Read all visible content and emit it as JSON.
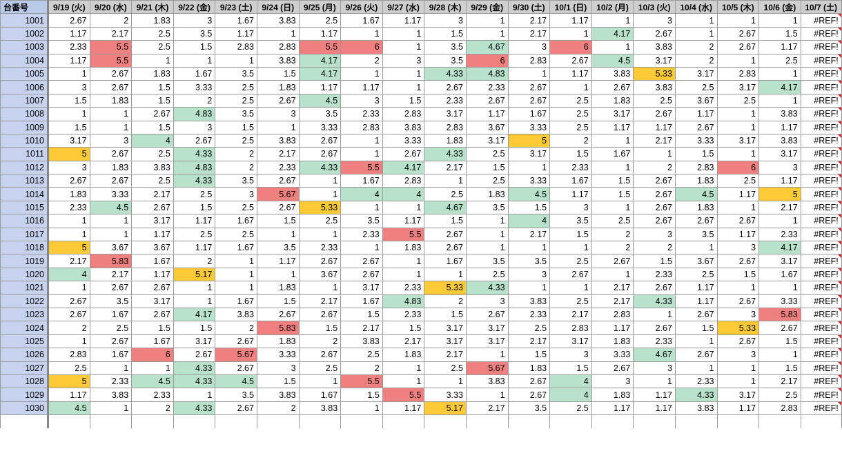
{
  "colors": {
    "red": "#f08080",
    "green": "#b9e2cc",
    "yellow": "#fbca35",
    "row_header": "#c7d3ee",
    "col_header": "#cfcfcf"
  },
  "header": {
    "corner": "台番号",
    "dates": [
      "9/19 (火)",
      "9/20 (水)",
      "9/21 (木)",
      "9/22 (金)",
      "9/23 (土)",
      "9/24 (日)",
      "9/25 (月)",
      "9/26 (火)",
      "9/27 (水)",
      "9/28 (木)",
      "9/29 (金)",
      "9/30 (土)",
      "10/1 (日)",
      "10/2 (月)",
      "10/3 (火)",
      "10/4 (水)",
      "10/5 (木)",
      "10/6 (金)",
      "10/7 (土)"
    ]
  },
  "rows": [
    {
      "id": "1001",
      "vals": [
        "2.67",
        "2",
        "1.83",
        "3",
        "1.67",
        "3.83",
        "2.5",
        "1.67",
        "1.17",
        "3",
        "1",
        "2.17",
        "1.17",
        "1",
        "3",
        "1",
        "1",
        "1",
        "#REF!"
      ],
      "hl": {}
    },
    {
      "id": "1002",
      "vals": [
        "1.17",
        "2.17",
        "2.5",
        "3.5",
        "1.17",
        "1",
        "1.17",
        "1",
        "1",
        "1.5",
        "1",
        "2.17",
        "1",
        "4.17",
        "2.67",
        "1",
        "2.67",
        "1.5",
        "#REF!"
      ],
      "hl": {
        "13": "green"
      }
    },
    {
      "id": "1003",
      "vals": [
        "2.33",
        "5.5",
        "2.5",
        "1.5",
        "2.83",
        "2.83",
        "5.5",
        "6",
        "1",
        "3.5",
        "4.67",
        "3",
        "6",
        "1",
        "3.83",
        "2",
        "2.67",
        "1.17",
        "#REF!"
      ],
      "hl": {
        "1": "red",
        "6": "red",
        "7": "red",
        "10": "green",
        "12": "red"
      }
    },
    {
      "id": "1004",
      "vals": [
        "1.17",
        "5.5",
        "1",
        "1",
        "1",
        "3.83",
        "4.17",
        "2",
        "3",
        "3.5",
        "6",
        "2.83",
        "2.67",
        "4.5",
        "3.17",
        "2",
        "1",
        "2.5",
        "#REF!"
      ],
      "hl": {
        "1": "red",
        "6": "green",
        "10": "red",
        "13": "green"
      }
    },
    {
      "id": "1005",
      "vals": [
        "1",
        "2.67",
        "1.83",
        "1.67",
        "3.5",
        "1.5",
        "4.17",
        "1",
        "1",
        "4.33",
        "4.83",
        "1",
        "1.17",
        "3.83",
        "5.33",
        "3.17",
        "2.83",
        "1",
        "#REF!"
      ],
      "hl": {
        "6": "green",
        "9": "green",
        "10": "green",
        "14": "yellow"
      }
    },
    {
      "id": "1006",
      "vals": [
        "3",
        "2.67",
        "1.5",
        "3.33",
        "2.5",
        "1.83",
        "1.17",
        "1.17",
        "1",
        "2.67",
        "2.33",
        "2.67",
        "1",
        "2.67",
        "3.83",
        "2.5",
        "3.17",
        "4.17",
        "#REF!"
      ],
      "hl": {
        "17": "green"
      }
    },
    {
      "id": "1007",
      "vals": [
        "1.5",
        "1.83",
        "1.5",
        "2",
        "2.5",
        "2.67",
        "4.5",
        "3",
        "1.5",
        "2.33",
        "2.67",
        "2.67",
        "2.5",
        "1.83",
        "2.5",
        "3.67",
        "2.5",
        "1",
        "#REF!"
      ],
      "hl": {
        "6": "green"
      }
    },
    {
      "id": "1008",
      "vals": [
        "1",
        "1",
        "2.67",
        "4.83",
        "3.5",
        "3",
        "3.5",
        "2.33",
        "2.83",
        "3.17",
        "1.17",
        "1.67",
        "2.5",
        "3.17",
        "2.67",
        "1.17",
        "1",
        "3.83",
        "#REF!"
      ],
      "hl": {
        "3": "green"
      }
    },
    {
      "id": "1009",
      "vals": [
        "1.5",
        "1",
        "1.5",
        "3",
        "1.5",
        "1",
        "3.33",
        "2.83",
        "3.83",
        "2.83",
        "3.67",
        "3.33",
        "2.5",
        "1.17",
        "1.17",
        "2.67",
        "1",
        "1.17",
        "#REF!"
      ],
      "hl": {}
    },
    {
      "id": "1010",
      "vals": [
        "3.17",
        "3",
        "4",
        "2.67",
        "2.5",
        "3.83",
        "2.67",
        "1",
        "3.33",
        "1.83",
        "3.17",
        "5",
        "2",
        "1",
        "2.17",
        "3.33",
        "3.17",
        "3.83",
        "#REF!"
      ],
      "hl": {
        "2": "green",
        "11": "yellow"
      }
    },
    {
      "id": "1011",
      "vals": [
        "5",
        "2.67",
        "2.5",
        "4.33",
        "2",
        "2.17",
        "2.67",
        "1",
        "2.67",
        "4.33",
        "2.5",
        "3.17",
        "1.5",
        "1.67",
        "1",
        "1.5",
        "1",
        "3.17",
        "#REF!"
      ],
      "hl": {
        "0": "yellow",
        "3": "green",
        "9": "green"
      }
    },
    {
      "id": "1012",
      "vals": [
        "3",
        "1.83",
        "3.83",
        "4.83",
        "2",
        "2.33",
        "4.33",
        "5.5",
        "4.17",
        "2.17",
        "1.5",
        "1",
        "2.33",
        "1",
        "2",
        "2.83",
        "6",
        "3",
        "#REF!"
      ],
      "hl": {
        "3": "green",
        "6": "green",
        "7": "red",
        "8": "green",
        "16": "red"
      }
    },
    {
      "id": "1013",
      "vals": [
        "2.67",
        "2.67",
        "2.5",
        "4.33",
        "3.5",
        "2.67",
        "1",
        "1.67",
        "2.83",
        "1",
        "2.5",
        "3.33",
        "1.67",
        "1.5",
        "2.67",
        "1.83",
        "2.5",
        "1.17",
        "#REF!"
      ],
      "hl": {
        "3": "green"
      }
    },
    {
      "id": "1014",
      "vals": [
        "1.83",
        "3.33",
        "2.17",
        "2.5",
        "3",
        "5.67",
        "1",
        "4",
        "4",
        "2.5",
        "1.83",
        "4.5",
        "1.17",
        "1.5",
        "2.67",
        "4.5",
        "1.17",
        "5",
        "#REF!"
      ],
      "hl": {
        "5": "red",
        "7": "green",
        "8": "green",
        "11": "green",
        "15": "green",
        "17": "yellow"
      }
    },
    {
      "id": "1015",
      "vals": [
        "2.33",
        "4.5",
        "2.67",
        "1.5",
        "2.5",
        "2.67",
        "5.33",
        "1",
        "1",
        "4.67",
        "3.5",
        "1.5",
        "3",
        "1",
        "2.67",
        "1.83",
        "1",
        "2.17",
        "#REF!"
      ],
      "hl": {
        "1": "green",
        "6": "yellow",
        "9": "green"
      }
    },
    {
      "id": "1016",
      "vals": [
        "1",
        "1",
        "3.17",
        "1.17",
        "1.67",
        "1.5",
        "2.5",
        "3.5",
        "1.17",
        "1.5",
        "1",
        "4",
        "3.5",
        "2.5",
        "2.67",
        "2.67",
        "2.67",
        "1",
        "#REF!"
      ],
      "hl": {
        "11": "green"
      }
    },
    {
      "id": "1017",
      "vals": [
        "1",
        "1",
        "1.17",
        "2.5",
        "2.5",
        "1",
        "1",
        "2.33",
        "5.5",
        "2.67",
        "1",
        "2.17",
        "1.5",
        "2",
        "3",
        "3.5",
        "1.17",
        "2.33",
        "#REF!"
      ],
      "hl": {
        "8": "red"
      }
    },
    {
      "id": "1018",
      "vals": [
        "5",
        "3.67",
        "3.67",
        "1.17",
        "1.67",
        "3.5",
        "2.33",
        "1",
        "1.83",
        "2.67",
        "1",
        "1",
        "1",
        "2",
        "2",
        "1",
        "3",
        "4.17",
        "#REF!"
      ],
      "hl": {
        "0": "yellow",
        "17": "green"
      }
    },
    {
      "id": "1019",
      "vals": [
        "2.17",
        "5.83",
        "1.67",
        "2",
        "1",
        "1.17",
        "2.67",
        "2.67",
        "1",
        "1.67",
        "3.5",
        "3.5",
        "2.5",
        "2.67",
        "1.5",
        "3.67",
        "2.67",
        "3.17",
        "#REF!"
      ],
      "hl": {
        "1": "red"
      }
    },
    {
      "id": "1020",
      "vals": [
        "4",
        "2.17",
        "1.17",
        "5.17",
        "1",
        "1",
        "3.67",
        "2.67",
        "1",
        "1",
        "2.5",
        "3",
        "2.67",
        "1",
        "2.33",
        "2.5",
        "1.5",
        "1.67",
        "#REF!"
      ],
      "hl": {
        "0": "green",
        "3": "yellow"
      }
    },
    {
      "id": "1021",
      "vals": [
        "1",
        "2.67",
        "2.67",
        "1",
        "1",
        "1.83",
        "1",
        "3.17",
        "2.33",
        "5.33",
        "4.33",
        "1",
        "1",
        "2.17",
        "2.67",
        "1.17",
        "1",
        "1",
        "#REF!"
      ],
      "hl": {
        "9": "yellow",
        "10": "green"
      }
    },
    {
      "id": "1022",
      "vals": [
        "2.67",
        "3.5",
        "3.17",
        "1",
        "1.67",
        "1.5",
        "2.17",
        "1.67",
        "4.83",
        "2",
        "3",
        "3.83",
        "2.5",
        "2.17",
        "4.33",
        "1.17",
        "2.67",
        "3.33",
        "#REF!"
      ],
      "hl": {
        "8": "green",
        "14": "green"
      }
    },
    {
      "id": "1023",
      "vals": [
        "2.67",
        "1.67",
        "2.67",
        "4.17",
        "3.83",
        "2.67",
        "2.67",
        "1.5",
        "2.33",
        "1.5",
        "2.67",
        "2.33",
        "2.17",
        "2.83",
        "1",
        "2.67",
        "3",
        "5.83",
        "#REF!"
      ],
      "hl": {
        "3": "green",
        "17": "red"
      }
    },
    {
      "id": "1024",
      "vals": [
        "2",
        "2.5",
        "1.5",
        "1.5",
        "2",
        "5.83",
        "1.5",
        "2.17",
        "1.5",
        "3.17",
        "3.17",
        "2.5",
        "2.83",
        "1.17",
        "2.67",
        "1.5",
        "5.33",
        "2.67",
        "#REF!"
      ],
      "hl": {
        "5": "red",
        "16": "yellow"
      }
    },
    {
      "id": "1025",
      "vals": [
        "1",
        "2.67",
        "1.67",
        "3.17",
        "2.67",
        "1.83",
        "2",
        "3.83",
        "2.17",
        "3.17",
        "3.17",
        "2.17",
        "3.17",
        "1.83",
        "2.33",
        "1",
        "2.67",
        "1.5",
        "#REF!"
      ],
      "hl": {}
    },
    {
      "id": "1026",
      "vals": [
        "2.83",
        "1.67",
        "6",
        "2.67",
        "5.67",
        "3.33",
        "2.67",
        "2.5",
        "1.83",
        "2.17",
        "1",
        "1.5",
        "3",
        "3.33",
        "4.67",
        "2.67",
        "3",
        "1",
        "#REF!"
      ],
      "hl": {
        "2": "red",
        "4": "red",
        "14": "green"
      }
    },
    {
      "id": "1027",
      "vals": [
        "2.5",
        "1",
        "1",
        "4.33",
        "2.67",
        "3",
        "2.5",
        "2",
        "1",
        "2.5",
        "5.67",
        "1.83",
        "1.5",
        "2.67",
        "3",
        "1",
        "1",
        "1.5",
        "#REF!"
      ],
      "hl": {
        "3": "green",
        "10": "red"
      }
    },
    {
      "id": "1028",
      "vals": [
        "5",
        "2.33",
        "4.5",
        "4.33",
        "4.5",
        "1.5",
        "1",
        "5.5",
        "1",
        "1",
        "3.83",
        "2.67",
        "4",
        "3",
        "1",
        "2.33",
        "1",
        "2.17",
        "#REF!"
      ],
      "hl": {
        "0": "yellow",
        "2": "green",
        "3": "green",
        "4": "green",
        "7": "red",
        "12": "green"
      }
    },
    {
      "id": "1029",
      "vals": [
        "1.17",
        "3.83",
        "2.33",
        "1",
        "3.5",
        "3.83",
        "1.67",
        "1.5",
        "5.5",
        "3.33",
        "1",
        "2.67",
        "4",
        "1.83",
        "1.17",
        "4.33",
        "3.17",
        "2.5",
        "#REF!"
      ],
      "hl": {
        "8": "red",
        "12": "green",
        "15": "green"
      }
    },
    {
      "id": "1030",
      "vals": [
        "4.5",
        "1",
        "2",
        "4.33",
        "2.67",
        "2",
        "3.83",
        "1",
        "1.17",
        "5.17",
        "2.17",
        "3.5",
        "2.5",
        "1.17",
        "1.17",
        "3.83",
        "1.17",
        "2.83",
        "#REF!"
      ],
      "hl": {
        "0": "green",
        "3": "green",
        "9": "yellow"
      }
    }
  ]
}
